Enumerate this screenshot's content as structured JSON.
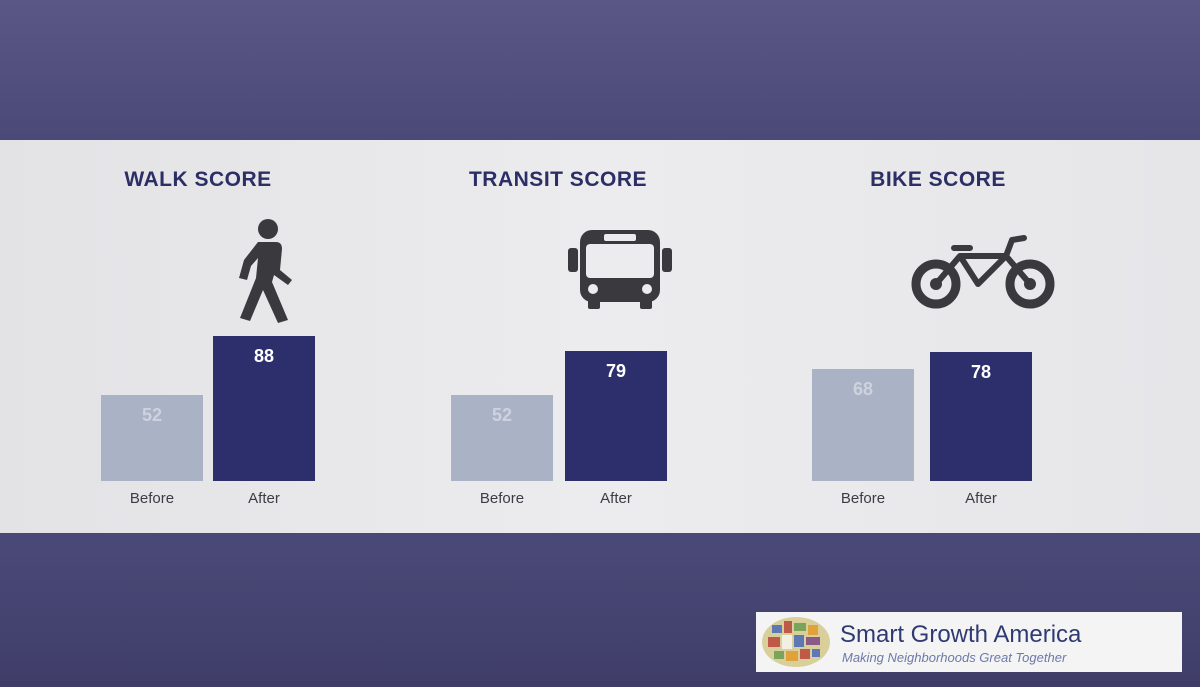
{
  "chart_data": [
    {
      "type": "bar",
      "title": "WALK SCORE",
      "categories": [
        "Before",
        "After"
      ],
      "values": [
        52,
        88
      ],
      "colors": [
        "#aab3c6",
        "#2d2f6d"
      ],
      "icon": "pedestrian-icon"
    },
    {
      "type": "bar",
      "title": "TRANSIT SCORE",
      "categories": [
        "Before",
        "After"
      ],
      "values": [
        52,
        79
      ],
      "colors": [
        "#aab3c6",
        "#2d2f6d"
      ],
      "icon": "bus-icon"
    },
    {
      "type": "bar",
      "title": "BIKE SCORE",
      "categories": [
        "Before",
        "After"
      ],
      "values": [
        68,
        78
      ],
      "colors": [
        "#aab3c6",
        "#2d2f6d"
      ],
      "icon": "bicycle-icon"
    }
  ],
  "logo": {
    "name": "Smart Growth America",
    "tagline": "Making Neighborhoods Great Together",
    "icon": "smart-growth-america-logo"
  }
}
